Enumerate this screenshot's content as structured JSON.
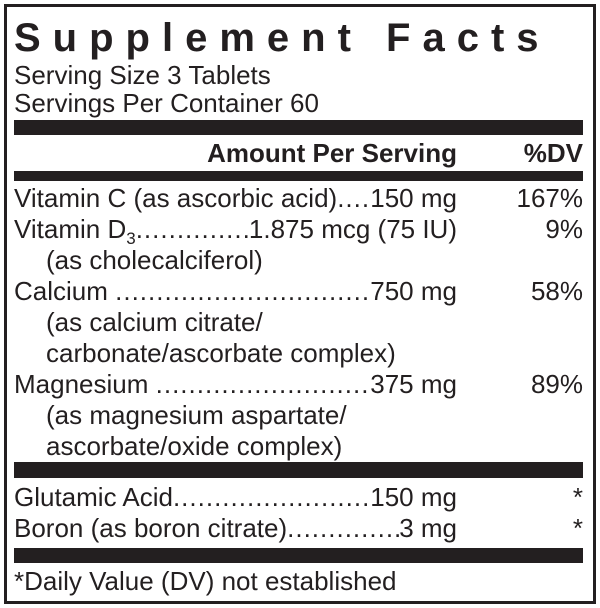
{
  "label": {
    "title": "Supplement Facts",
    "serving_size": "Serving Size 3 Tablets",
    "servings_per_container": "Servings Per Container 60",
    "columns": {
      "amount_header": "Amount Per Serving",
      "dv_header": "%DV"
    },
    "nutrients": [
      {
        "name": "Vitamin C (as ascorbic acid)",
        "amount": "150 mg",
        "dv": "167%"
      },
      {
        "name": "Vitamin D",
        "subscript": "3",
        "amount": "1.875 mcg (75 IU)",
        "dv": "9%",
        "sub": [
          "(as cholecalciferol)"
        ]
      },
      {
        "name": "Calcium ",
        "amount": "750 mg",
        "dv": "58%",
        "sub": [
          "(as calcium citrate/",
          "carbonate/ascorbate complex)"
        ]
      },
      {
        "name": "Magnesium ",
        "amount": "375 mg",
        "dv": "89%",
        "sub": [
          "(as magnesium aspartate/",
          "ascorbate/oxide complex)"
        ]
      }
    ],
    "other_ingredients": [
      {
        "name": "Glutamic Acid",
        "amount": "150 mg",
        "dv": "*"
      },
      {
        "name": "Boron (as boron citrate)",
        "amount": "3 mg",
        "dv": "*"
      }
    ],
    "footnote": "*Daily Value (DV) not established",
    "leader_dot": ".",
    "colors": {
      "ink": "#231f20",
      "background": "#ffffff"
    }
  }
}
